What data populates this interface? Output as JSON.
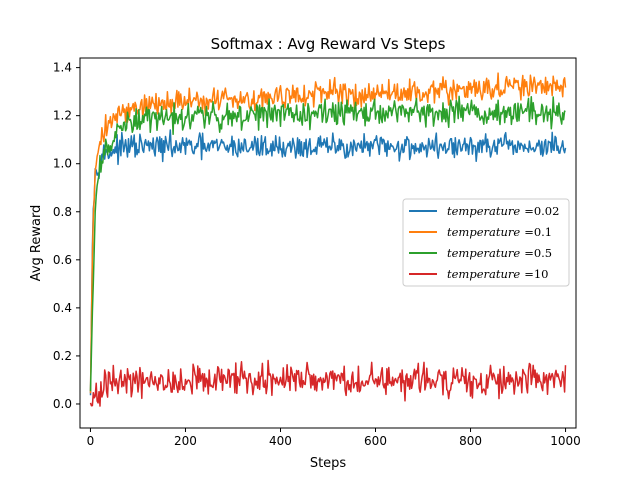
{
  "chart_data": {
    "type": "line",
    "title": "Softmax : Avg Reward Vs Steps",
    "xlabel": "Steps",
    "ylabel": "Avg Reward",
    "xlim": [
      -22,
      1022
    ],
    "ylim": [
      -0.1,
      1.44
    ],
    "xticks": [
      0,
      200,
      400,
      600,
      800,
      1000
    ],
    "yticks": [
      0.0,
      0.2,
      0.4,
      0.6,
      0.8,
      1.0,
      1.2,
      1.4
    ],
    "ytick_labels": [
      "0.0",
      "0.2",
      "0.4",
      "0.6",
      "0.8",
      "1.0",
      "1.2",
      "1.4"
    ],
    "grid": false,
    "legend_position": "center-right",
    "num_steps": 1000,
    "series": [
      {
        "name": "temperature =0.02",
        "legend_italic": "temperature",
        "legend_value": "=0.02",
        "color": "#1f77b4",
        "x": [
          0,
          5,
          10,
          15,
          20,
          30,
          40,
          50,
          60,
          80,
          100,
          150,
          200,
          300,
          400,
          500,
          600,
          700,
          800,
          900,
          1000
        ],
        "values": [
          0.05,
          0.8,
          0.95,
          1.0,
          1.02,
          1.04,
          1.05,
          1.06,
          1.06,
          1.07,
          1.07,
          1.07,
          1.07,
          1.07,
          1.07,
          1.07,
          1.07,
          1.07,
          1.07,
          1.07,
          1.07
        ],
        "noise": 0.025
      },
      {
        "name": "temperature =0.1",
        "legend_italic": "temperature",
        "legend_value": "=0.1",
        "color": "#ff7f0e",
        "x": [
          0,
          5,
          10,
          15,
          20,
          30,
          40,
          50,
          60,
          80,
          100,
          150,
          200,
          300,
          400,
          500,
          600,
          700,
          800,
          900,
          1000
        ],
        "values": [
          0.05,
          0.75,
          0.98,
          1.06,
          1.1,
          1.14,
          1.17,
          1.19,
          1.2,
          1.22,
          1.24,
          1.25,
          1.26,
          1.27,
          1.28,
          1.29,
          1.29,
          1.3,
          1.31,
          1.32,
          1.32
        ],
        "noise": 0.025
      },
      {
        "name": "temperature =0.5",
        "legend_italic": "temperature",
        "legend_value": "=0.5",
        "color": "#2ca02c",
        "x": [
          0,
          5,
          10,
          15,
          20,
          30,
          40,
          50,
          60,
          80,
          100,
          150,
          200,
          300,
          400,
          500,
          600,
          700,
          800,
          900,
          1000
        ],
        "values": [
          0.05,
          0.45,
          0.8,
          0.92,
          0.98,
          1.04,
          1.08,
          1.11,
          1.13,
          1.16,
          1.18,
          1.19,
          1.2,
          1.2,
          1.21,
          1.21,
          1.21,
          1.22,
          1.22,
          1.22,
          1.22
        ],
        "noise": 0.028
      },
      {
        "name": "temperature =10",
        "legend_italic": "temperature",
        "legend_value": "=10",
        "color": "#d62728",
        "x": [
          0,
          5,
          10,
          20,
          30,
          50,
          100,
          200,
          300,
          400,
          500,
          600,
          700,
          800,
          900,
          1000
        ],
        "values": [
          -0.01,
          0.0,
          0.02,
          0.05,
          0.07,
          0.08,
          0.09,
          0.09,
          0.1,
          0.1,
          0.1,
          0.1,
          0.1,
          0.1,
          0.1,
          0.1
        ],
        "noise": 0.032
      }
    ]
  }
}
